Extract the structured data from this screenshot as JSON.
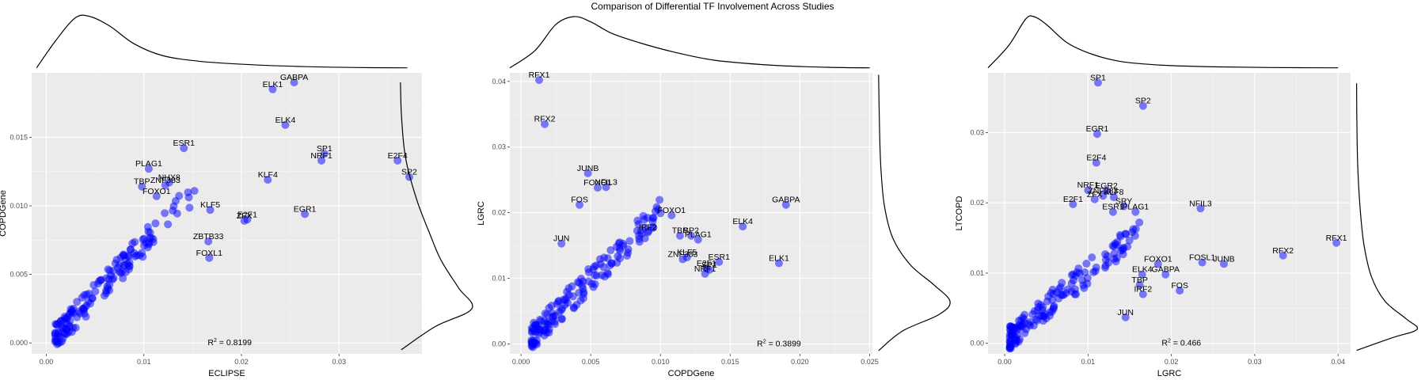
{
  "title": "Comparison of Differential TF Involvement Across Studies",
  "chart_data": [
    {
      "type": "scatter",
      "xlabel": "ECLIPSE",
      "ylabel": "COPDGene",
      "xlim": [
        -0.0015,
        0.0385
      ],
      "ylim": [
        -0.0008,
        0.0197
      ],
      "xticks": [
        0.0,
        0.01,
        0.02,
        0.03
      ],
      "xtick_labels": [
        "0.00",
        "0.01",
        "0.02",
        "0.03"
      ],
      "yticks": [
        0.0,
        0.005,
        0.01,
        0.015
      ],
      "ytick_labels": [
        "0.000",
        "0.005",
        "0.010",
        "0.015"
      ],
      "r2_label": "R",
      "r2_sup": "2",
      "r2_value": " = 0.8199",
      "r2_pos": [
        0.0188,
        0.0
      ],
      "labeled_points": [
        {
          "label": "GABPA",
          "x": 0.0254,
          "y": 0.019
        },
        {
          "label": "ELK1",
          "x": 0.0232,
          "y": 0.0185
        },
        {
          "label": "ELK4",
          "x": 0.0245,
          "y": 0.0159
        },
        {
          "label": "ESR1",
          "x": 0.0141,
          "y": 0.0142
        },
        {
          "label": "SP1",
          "x": 0.0285,
          "y": 0.0138
        },
        {
          "label": "NRF1",
          "x": 0.0282,
          "y": 0.0133
        },
        {
          "label": "E2F4",
          "x": 0.036,
          "y": 0.0133
        },
        {
          "label": "SP2",
          "x": 0.0372,
          "y": 0.0121
        },
        {
          "label": "PLAG1",
          "x": 0.0105,
          "y": 0.0127
        },
        {
          "label": "NHX8",
          "x": 0.0126,
          "y": 0.0117
        },
        {
          "label": "ZNF383",
          "x": 0.0122,
          "y": 0.0115
        },
        {
          "label": "TBP",
          "x": 0.0098,
          "y": 0.0114
        },
        {
          "label": "FOXO1",
          "x": 0.0113,
          "y": 0.0107
        },
        {
          "label": "KLF4",
          "x": 0.0227,
          "y": 0.0119
        },
        {
          "label": "KLF5",
          "x": 0.0168,
          "y": 0.0097
        },
        {
          "label": "E2F1",
          "x": 0.0206,
          "y": 0.009
        },
        {
          "label": "ZFX",
          "x": 0.0203,
          "y": 0.0089
        },
        {
          "label": "EGR1",
          "x": 0.0265,
          "y": 0.0094
        },
        {
          "label": "ZBTB33",
          "x": 0.0166,
          "y": 0.0074
        },
        {
          "label": "FOXL1",
          "x": 0.0167,
          "y": 0.0062
        }
      ],
      "x_density": [
        [
          -0.001,
          0.02
        ],
        [
          0.001,
          0.55
        ],
        [
          0.003,
          0.98
        ],
        [
          0.0045,
          1.0
        ],
        [
          0.0065,
          0.82
        ],
        [
          0.009,
          0.48
        ],
        [
          0.012,
          0.25
        ],
        [
          0.016,
          0.14
        ],
        [
          0.021,
          0.08
        ],
        [
          0.026,
          0.045
        ],
        [
          0.032,
          0.025
        ],
        [
          0.037,
          0.02
        ]
      ],
      "y_density": [
        [
          -0.0005,
          0.03
        ],
        [
          0.0012,
          0.5
        ],
        [
          0.0025,
          1.0
        ],
        [
          0.004,
          0.82
        ],
        [
          0.006,
          0.58
        ],
        [
          0.008,
          0.42
        ],
        [
          0.0105,
          0.24
        ],
        [
          0.0135,
          0.09
        ],
        [
          0.0165,
          0.035
        ],
        [
          0.019,
          0.02
        ]
      ]
    },
    {
      "type": "scatter",
      "xlabel": "COPDGene",
      "ylabel": "LGRC",
      "xlim": [
        -0.0008,
        0.0252
      ],
      "ylim": [
        -0.0015,
        0.0413
      ],
      "xticks": [
        0.0,
        0.005,
        0.01,
        0.015,
        0.02,
        0.025
      ],
      "xtick_labels": [
        "0.000",
        "0.005",
        "0.010",
        "0.015",
        "0.020",
        "0.025"
      ],
      "yticks": [
        0.0,
        0.01,
        0.02,
        0.03,
        0.04
      ],
      "ytick_labels": [
        "0.00",
        "0.01",
        "0.02",
        "0.03",
        "0.04"
      ],
      "r2_label": "R",
      "r2_sup": "2",
      "r2_value": " = 0.3899",
      "r2_pos": [
        0.0185,
        0.0
      ],
      "labeled_points": [
        {
          "label": "RFX1",
          "x": 0.0013,
          "y": 0.0402
        },
        {
          "label": "RFX2",
          "x": 0.0017,
          "y": 0.0335
        },
        {
          "label": "JUNB",
          "x": 0.0048,
          "y": 0.026
        },
        {
          "label": "FOXO1",
          "x": 0.0055,
          "y": 0.0238
        },
        {
          "label": "NFIL3",
          "x": 0.0061,
          "y": 0.0239
        },
        {
          "label": "FOS",
          "x": 0.0042,
          "y": 0.0212
        },
        {
          "label": "GABPA",
          "x": 0.019,
          "y": 0.0212
        },
        {
          "label": "FOXO1",
          "x": 0.0108,
          "y": 0.0196
        },
        {
          "label": "ELK4",
          "x": 0.0159,
          "y": 0.0179
        },
        {
          "label": "IRF2",
          "x": 0.0091,
          "y": 0.017
        },
        {
          "label": "TBP",
          "x": 0.0114,
          "y": 0.0165
        },
        {
          "label": "SP2",
          "x": 0.0122,
          "y": 0.0165
        },
        {
          "label": "PLAG1",
          "x": 0.0127,
          "y": 0.0159
        },
        {
          "label": "JUN",
          "x": 0.0029,
          "y": 0.0153
        },
        {
          "label": "ZNF383",
          "x": 0.0116,
          "y": 0.0129
        },
        {
          "label": "KLF5",
          "x": 0.0119,
          "y": 0.0132
        },
        {
          "label": "ESR1",
          "x": 0.0142,
          "y": 0.0125
        },
        {
          "label": "E2F1",
          "x": 0.0133,
          "y": 0.0115
        },
        {
          "label": "SP1",
          "x": 0.0135,
          "y": 0.0113
        },
        {
          "label": "NRF1",
          "x": 0.0132,
          "y": 0.0107
        },
        {
          "label": "ELK1",
          "x": 0.0185,
          "y": 0.0123
        }
      ],
      "x_density": [
        [
          -0.0008,
          0.02
        ],
        [
          0.001,
          0.35
        ],
        [
          0.0025,
          0.85
        ],
        [
          0.0038,
          1.0
        ],
        [
          0.005,
          0.9
        ],
        [
          0.0065,
          0.68
        ],
        [
          0.0085,
          0.5
        ],
        [
          0.011,
          0.32
        ],
        [
          0.014,
          0.16
        ],
        [
          0.018,
          0.07
        ],
        [
          0.022,
          0.03
        ],
        [
          0.025,
          0.02
        ]
      ],
      "y_density": [
        [
          -0.001,
          0.02
        ],
        [
          0.002,
          0.35
        ],
        [
          0.0045,
          0.85
        ],
        [
          0.0065,
          1.0
        ],
        [
          0.009,
          0.78
        ],
        [
          0.012,
          0.46
        ],
        [
          0.016,
          0.22
        ],
        [
          0.021,
          0.1
        ],
        [
          0.027,
          0.05
        ],
        [
          0.034,
          0.03
        ],
        [
          0.041,
          0.02
        ]
      ]
    },
    {
      "type": "scatter",
      "xlabel": "LGRC",
      "ylabel": "LTCOPD",
      "xlim": [
        -0.002,
        0.0415
      ],
      "ylim": [
        -0.0015,
        0.0385
      ],
      "xticks": [
        0.0,
        0.01,
        0.02,
        0.03,
        0.04
      ],
      "xtick_labels": [
        "0.00",
        "0.01",
        "0.02",
        "0.03",
        "0.04"
      ],
      "yticks": [
        0.0,
        0.01,
        0.02,
        0.03
      ],
      "ytick_labels": [
        "0.00",
        "0.01",
        "0.02",
        "0.03"
      ],
      "r2_label": "R",
      "r2_sup": "2",
      "r2_value": " = 0.466",
      "r2_pos": [
        0.0212,
        0.0
      ],
      "labeled_points": [
        {
          "label": "SP1",
          "x": 0.0112,
          "y": 0.0371
        },
        {
          "label": "SP2",
          "x": 0.0166,
          "y": 0.0338
        },
        {
          "label": "EGR1",
          "x": 0.0111,
          "y": 0.0298
        },
        {
          "label": "E2F4",
          "x": 0.011,
          "y": 0.0257
        },
        {
          "label": "NRF1",
          "x": 0.01,
          "y": 0.0218
        },
        {
          "label": "EGR2",
          "x": 0.0122,
          "y": 0.0217
        },
        {
          "label": "ZNF383",
          "x": 0.0118,
          "y": 0.021
        },
        {
          "label": "ZFX",
          "x": 0.0108,
          "y": 0.0205
        },
        {
          "label": "KLF8",
          "x": 0.0131,
          "y": 0.0208
        },
        {
          "label": "E2F1",
          "x": 0.0082,
          "y": 0.0198
        },
        {
          "label": "SRY",
          "x": 0.0143,
          "y": 0.0195
        },
        {
          "label": "ESR1",
          "x": 0.013,
          "y": 0.0187
        },
        {
          "label": "PLAG1",
          "x": 0.0157,
          "y": 0.0187
        },
        {
          "label": "NFIL3",
          "x": 0.0235,
          "y": 0.0192
        },
        {
          "label": "RFX1",
          "x": 0.0398,
          "y": 0.0143
        },
        {
          "label": "RFX2",
          "x": 0.0334,
          "y": 0.0125
        },
        {
          "label": "FOXO1",
          "x": 0.0184,
          "y": 0.0113
        },
        {
          "label": "FOSL1",
          "x": 0.0237,
          "y": 0.0115
        },
        {
          "label": "JUNB",
          "x": 0.0263,
          "y": 0.0113
        },
        {
          "label": "ELK4",
          "x": 0.0165,
          "y": 0.0098
        },
        {
          "label": "GABPA",
          "x": 0.0193,
          "y": 0.0098
        },
        {
          "label": "TBP",
          "x": 0.0162,
          "y": 0.0083
        },
        {
          "label": "IRF2",
          "x": 0.0166,
          "y": 0.007
        },
        {
          "label": "FOS",
          "x": 0.021,
          "y": 0.0075
        },
        {
          "label": "JUN",
          "x": 0.0145,
          "y": 0.0037
        }
      ],
      "x_density": [
        [
          -0.002,
          0.02
        ],
        [
          0.0005,
          0.45
        ],
        [
          0.0025,
          0.95
        ],
        [
          0.0035,
          1.0
        ],
        [
          0.005,
          0.85
        ],
        [
          0.0075,
          0.5
        ],
        [
          0.0105,
          0.28
        ],
        [
          0.014,
          0.14
        ],
        [
          0.019,
          0.07
        ],
        [
          0.025,
          0.04
        ],
        [
          0.032,
          0.025
        ],
        [
          0.04,
          0.02
        ]
      ],
      "y_density": [
        [
          -0.001,
          0.02
        ],
        [
          0.0008,
          0.6
        ],
        [
          0.002,
          1.0
        ],
        [
          0.0035,
          0.82
        ],
        [
          0.006,
          0.48
        ],
        [
          0.0095,
          0.26
        ],
        [
          0.014,
          0.14
        ],
        [
          0.019,
          0.08
        ],
        [
          0.025,
          0.04
        ],
        [
          0.031,
          0.025
        ],
        [
          0.037,
          0.02
        ]
      ]
    }
  ]
}
